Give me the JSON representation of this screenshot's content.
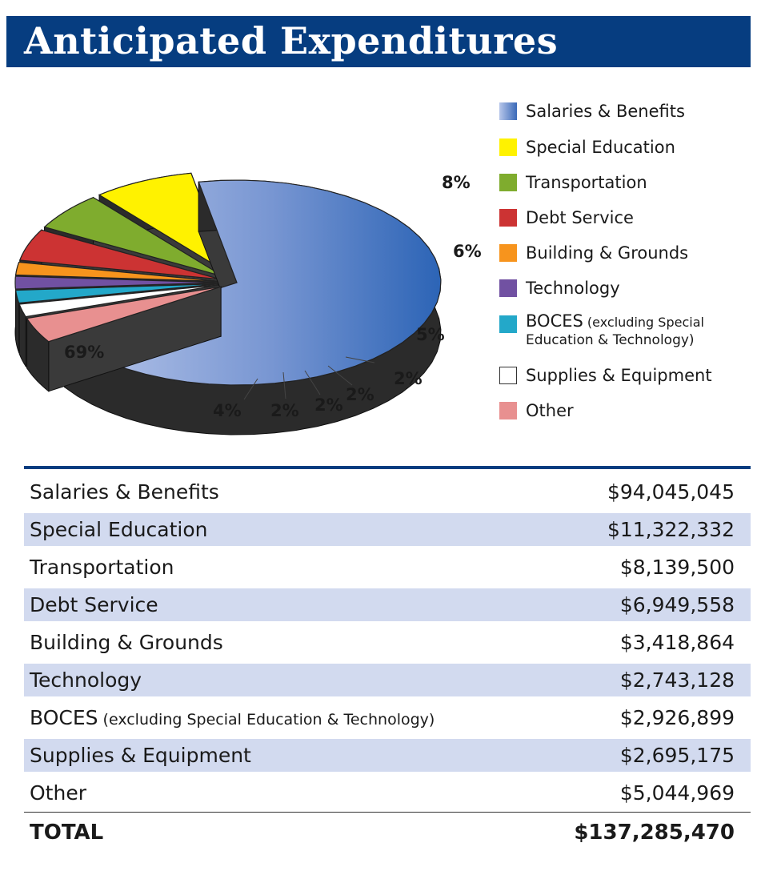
{
  "title": "Anticipated Expenditures",
  "chart_data": {
    "type": "pie",
    "title": "Anticipated Expenditures",
    "slices": [
      {
        "name": "Salaries & Benefits",
        "percent": 69,
        "label": "69%",
        "color": "#5f84cc"
      },
      {
        "name": "Special Education",
        "percent": 8,
        "label": "8%",
        "color": "#fff200"
      },
      {
        "name": "Transportation",
        "percent": 6,
        "label": "6%",
        "color": "#7fac2e"
      },
      {
        "name": "Debt Service",
        "percent": 5,
        "label": "5%",
        "color": "#cc3333"
      },
      {
        "name": "Building & Grounds",
        "percent": 2,
        "label": "2%",
        "color": "#f7941d"
      },
      {
        "name": "Technology",
        "percent": 2,
        "label": "2%",
        "color": "#7151a2"
      },
      {
        "name": "BOCES",
        "percent": 2,
        "label": "2%",
        "color": "#23a8c9"
      },
      {
        "name": "Supplies & Equipment",
        "percent": 2,
        "label": "2%",
        "color": "#ffffff"
      },
      {
        "name": "Other",
        "percent": 4,
        "label": "4%",
        "color": "#e89090"
      }
    ],
    "legend_position": "right"
  },
  "legend": [
    {
      "label": "Salaries & Benefits",
      "note": "",
      "color": "#5f84cc"
    },
    {
      "label": "Special Education",
      "note": "",
      "color": "#fff200"
    },
    {
      "label": "Transportation",
      "note": "",
      "color": "#7fac2e"
    },
    {
      "label": "Debt Service",
      "note": "",
      "color": "#cc3333"
    },
    {
      "label": "Building & Grounds",
      "note": "",
      "color": "#f7941d"
    },
    {
      "label": "Technology",
      "note": "",
      "color": "#7151a2"
    },
    {
      "label": "BOCES",
      "note": "(excluding Special Education & Technology)",
      "note_line1": "(excluding Special",
      "note_line2": "Education & Technology)",
      "color": "#23a8c9"
    },
    {
      "label": "Supplies & Equipment",
      "note": "",
      "color": "#ffffff"
    },
    {
      "label": "Other",
      "note": "",
      "color": "#e89090"
    }
  ],
  "table": {
    "rows": [
      {
        "label": "Salaries & Benefits",
        "note": "",
        "value": "$94,045,045"
      },
      {
        "label": "Special Education",
        "note": "",
        "value": "$11,322,332"
      },
      {
        "label": "Transportation",
        "note": "",
        "value": "$8,139,500"
      },
      {
        "label": "Debt Service",
        "note": "",
        "value": "$6,949,558"
      },
      {
        "label": "Building & Grounds",
        "note": "",
        "value": "$3,418,864"
      },
      {
        "label": "Technology",
        "note": "",
        "value": "$2,743,128"
      },
      {
        "label": "BOCES",
        "note": "(excluding Special Education & Technology)",
        "value": "$2,926,899"
      },
      {
        "label": "Supplies & Equipment",
        "note": "",
        "value": "$2,695,175"
      },
      {
        "label": "Other",
        "note": "",
        "value": "$5,044,969"
      }
    ],
    "total_label": "TOTAL",
    "total_value": "$137,285,470"
  }
}
